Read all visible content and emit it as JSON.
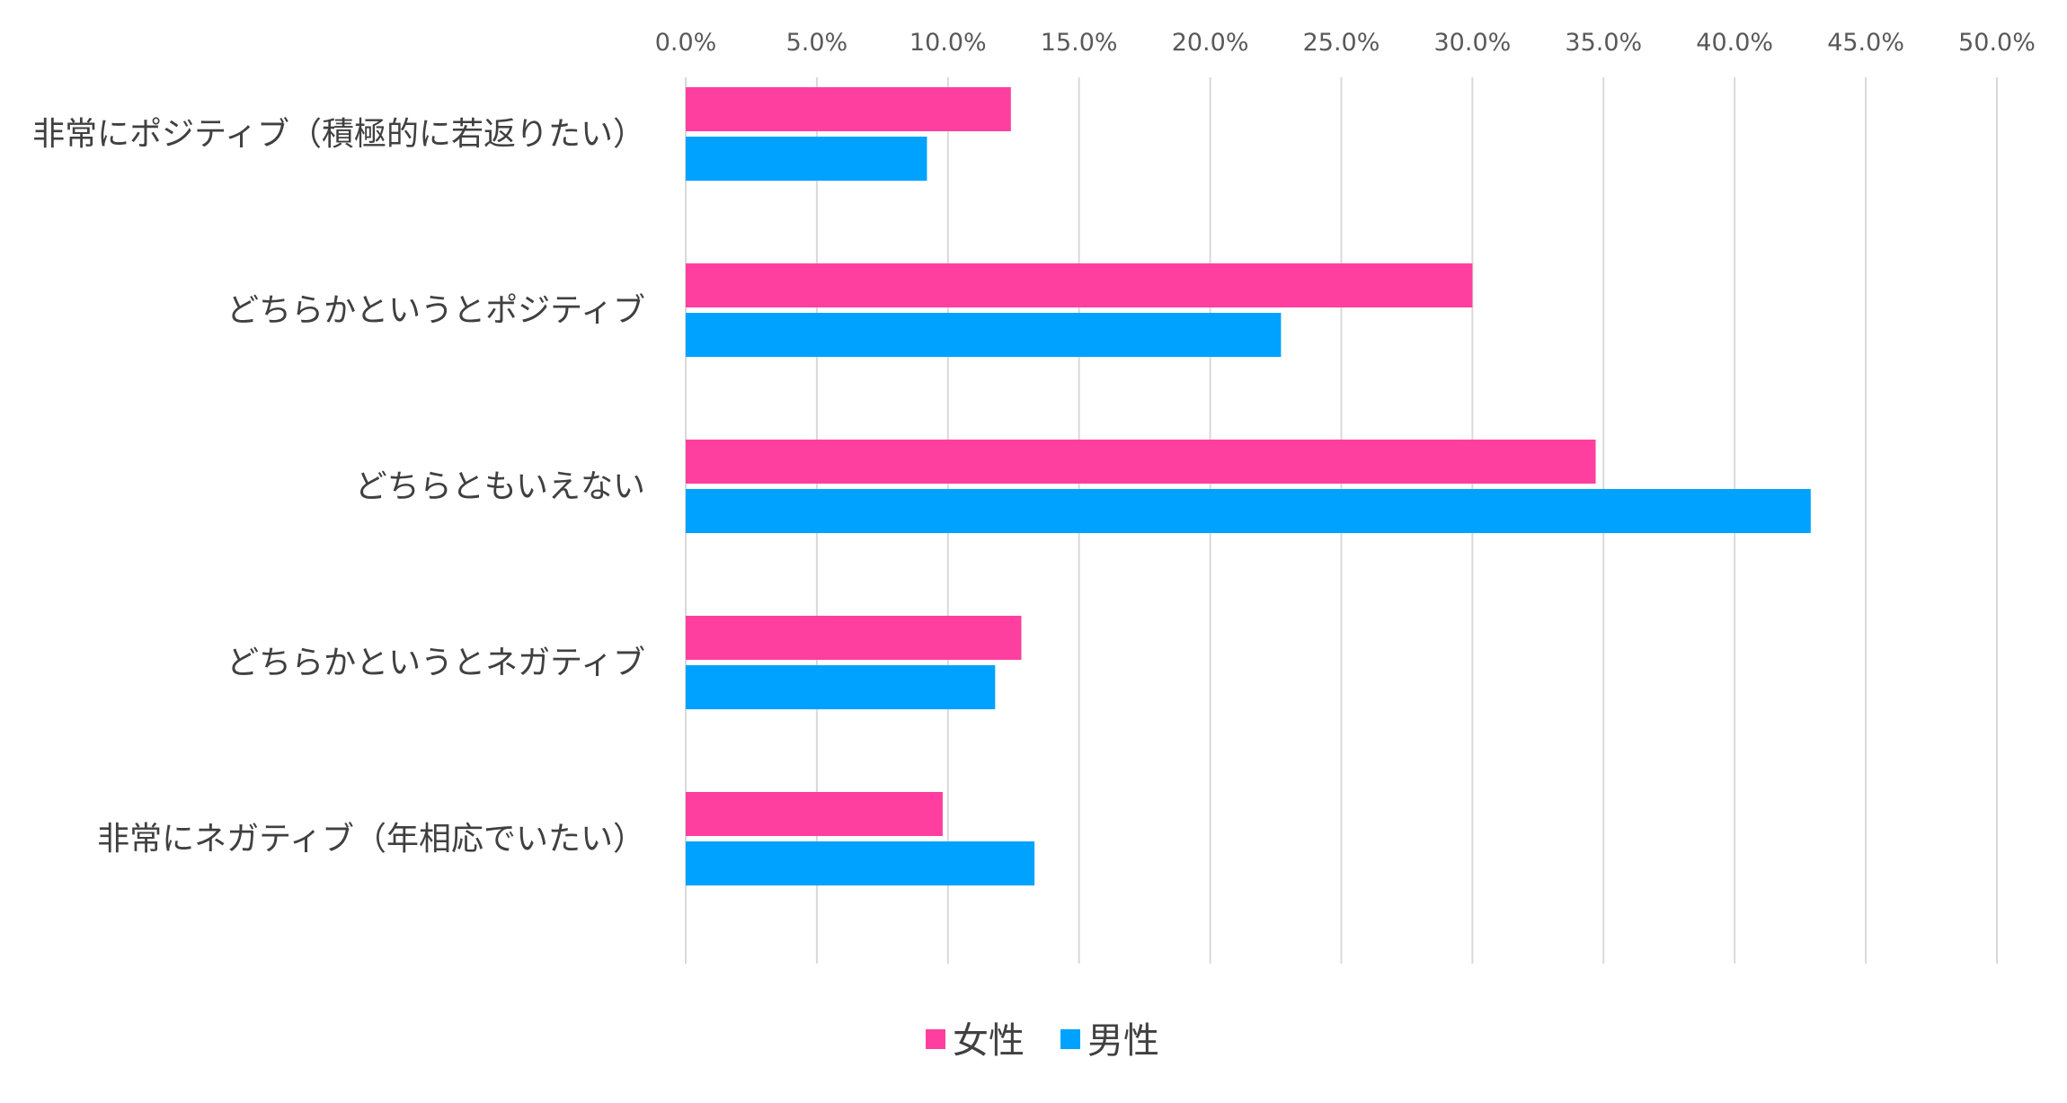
{
  "chart_data": {
    "type": "bar",
    "orientation": "horizontal",
    "title": "",
    "xlabel": "",
    "ylabel": "",
    "xlim": [
      0,
      50
    ],
    "x_ticks": [
      "0.0%",
      "5.0%",
      "10.0%",
      "15.0%",
      "20.0%",
      "25.0%",
      "30.0%",
      "35.0%",
      "40.0%",
      "45.0%",
      "50.0%"
    ],
    "x_tick_values": [
      0,
      5,
      10,
      15,
      20,
      25,
      30,
      35,
      40,
      45,
      50
    ],
    "grid": true,
    "legend_position": "bottom",
    "categories": [
      "非常にポジティブ（積極的に若返りたい）",
      "どちらかというとポジティブ",
      "どちらともいえない",
      "どちらかというとネガティブ",
      "非常にネガティブ（年相応でいたい）"
    ],
    "series": [
      {
        "name": "女性",
        "color": "#ff3fa0",
        "values": [
          12.4,
          30.0,
          34.7,
          12.8,
          9.8
        ]
      },
      {
        "name": "男性",
        "color": "#00a2ff",
        "values": [
          9.2,
          22.7,
          42.9,
          11.8,
          13.3
        ]
      }
    ]
  }
}
